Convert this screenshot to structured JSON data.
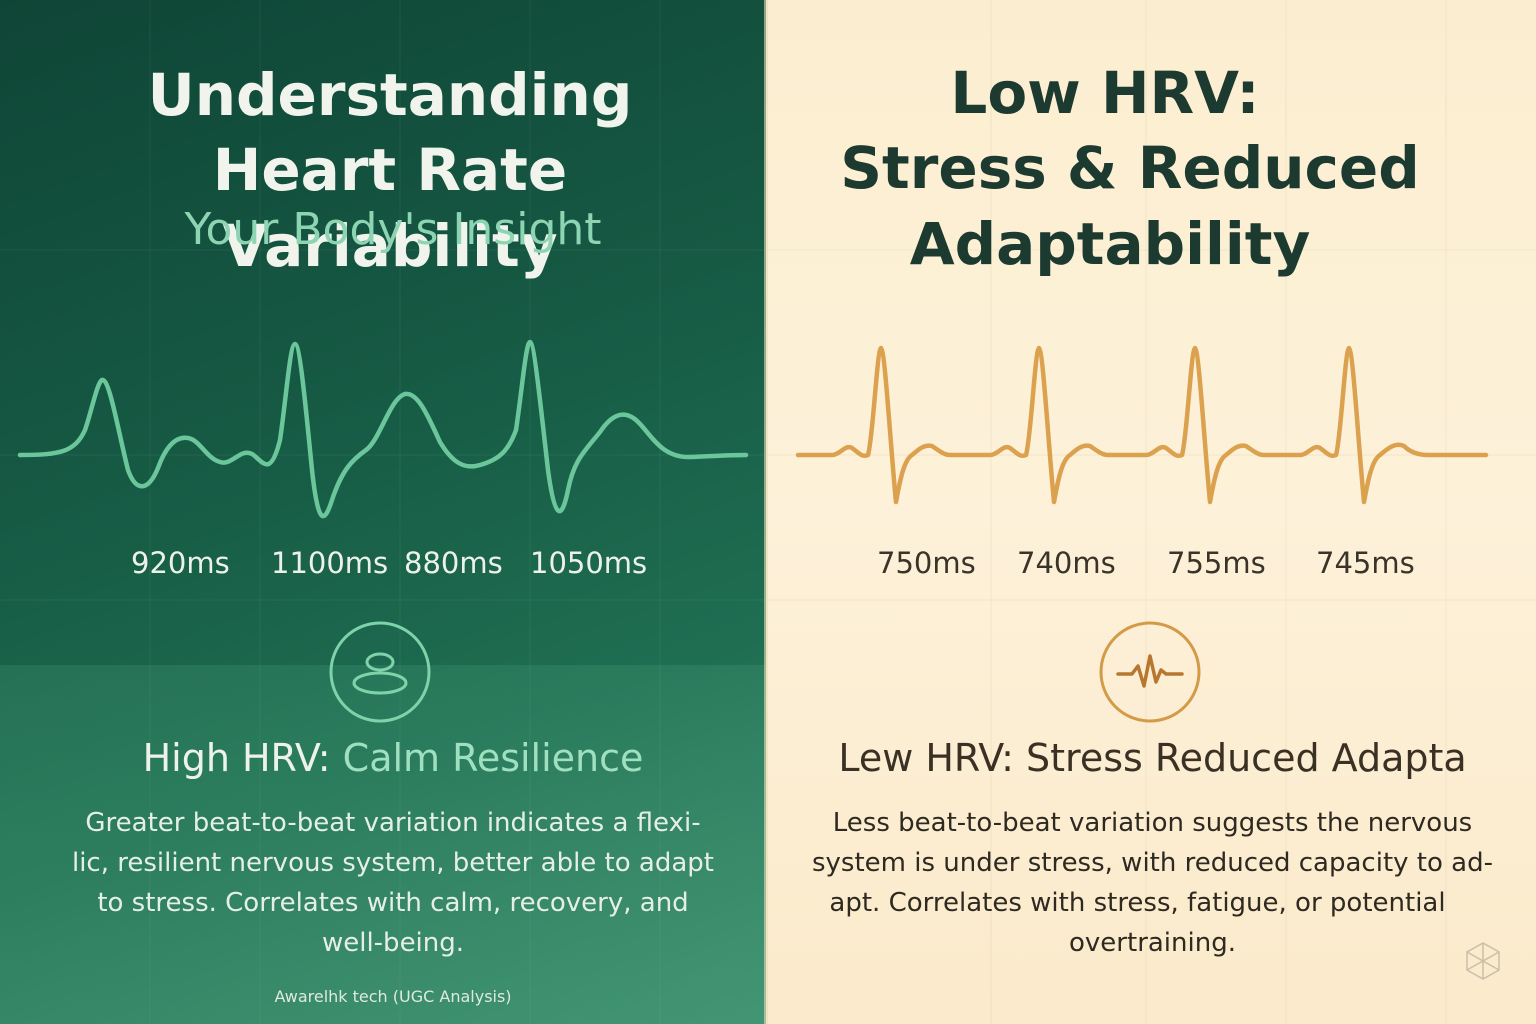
{
  "left_panel": {
    "title_lines": [
      "Understanding",
      "Heart Rate Variability"
    ],
    "subtitle": "Your Body's Insight",
    "intervals": [
      "920ms",
      "1100ms",
      "880ms",
      "1050ms"
    ],
    "badge_icon": "stacked-stones-icon",
    "heading_prefix": "High HRV: ",
    "heading_accent": "Calm Resilience",
    "body_lines": [
      "Greater beat-to-beat variation indicates a flexi-",
      "lic, resilient nervous system, better able to adapt",
      "to stress. Correlates with calm, recovery, and",
      "well-being."
    ],
    "footnote": "Awarelhk tech (UGC Analysis)",
    "wave_color": "#6cc69c"
  },
  "right_panel": {
    "title_lines": [
      "Low HRV:",
      "Stress & Reduced",
      "Adaptability"
    ],
    "intervals": [
      "750ms",
      "740ms",
      "755ms",
      "745ms"
    ],
    "badge_icon": "heartbeat-pulse-icon",
    "heading": "Lew HRV: Stress Reduced Adapta",
    "body_lines": [
      "Less beat-to-beat variation suggests the nervous",
      "system is under stress, with reduced capacity to ad-",
      "apt. Correlates with stress, fatigue, or potential",
      "overtraining."
    ],
    "corner_icon": "cube-logo-icon",
    "wave_color": "#dca14e"
  }
}
